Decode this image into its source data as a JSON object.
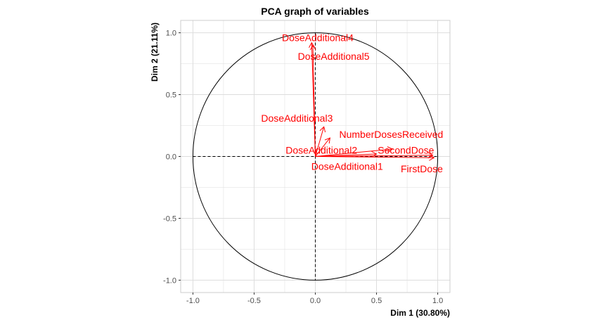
{
  "chart_data": {
    "type": "scatter",
    "subtype": "pca-variable-correlation-circle",
    "title": "PCA graph of variables",
    "xlabel": "Dim 1 (30.80%)",
    "ylabel": "Dim 2 (21.11%)",
    "xlim": [
      -1.1,
      1.1
    ],
    "ylim": [
      -1.1,
      1.1
    ],
    "xticks": [
      {
        "value": -1.0,
        "label": "-1.0"
      },
      {
        "value": -0.5,
        "label": "-0.5"
      },
      {
        "value": 0.0,
        "label": "0.0"
      },
      {
        "value": 0.5,
        "label": "0.5"
      },
      {
        "value": 1.0,
        "label": "1.0"
      }
    ],
    "yticks": [
      {
        "value": -1.0,
        "label": "-1.0"
      },
      {
        "value": -0.5,
        "label": "-0.5"
      },
      {
        "value": 0.0,
        "label": "0.0"
      },
      {
        "value": 0.5,
        "label": "0.5"
      },
      {
        "value": 1.0,
        "label": "1.0"
      }
    ],
    "grid": true,
    "unit_circle": true,
    "arrow_color": "#ff0000",
    "variables": [
      {
        "name": "DoseAdditional4",
        "x": -0.03,
        "y": 0.92,
        "label_x": 0.02,
        "label_y": 0.96
      },
      {
        "name": "DoseAdditional5",
        "x": -0.02,
        "y": 0.9,
        "label_x": 0.15,
        "label_y": 0.81
      },
      {
        "name": "DoseAdditional3",
        "x": 0.07,
        "y": 0.24,
        "label_x": -0.15,
        "label_y": 0.31
      },
      {
        "name": "NumberDosesReceived",
        "x": 0.63,
        "y": 0.06,
        "label_x": 0.62,
        "label_y": 0.18
      },
      {
        "name": "DoseAdditional2",
        "x": 0.12,
        "y": 0.15,
        "label_x": 0.05,
        "label_y": 0.05
      },
      {
        "name": "SecondDose",
        "x": 0.96,
        "y": 0.01,
        "label_x": 0.74,
        "label_y": 0.05
      },
      {
        "name": "DoseAdditional1",
        "x": 0.5,
        "y": 0.02,
        "label_x": 0.26,
        "label_y": -0.08
      },
      {
        "name": "FirstDose",
        "x": 0.97,
        "y": -0.01,
        "label_x": 0.87,
        "label_y": -0.1
      }
    ]
  },
  "colors": {
    "grid": "#dddddd",
    "axis_text": "#4d4d4d",
    "panel_border": "#cccccc",
    "arrow": "#ff0000",
    "circle": "#000000"
  }
}
